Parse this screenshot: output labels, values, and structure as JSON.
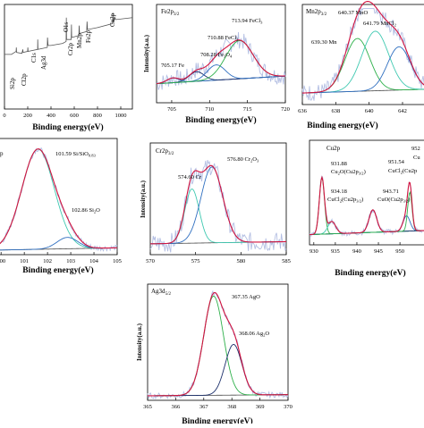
{
  "colors": {
    "data": "#b4bfe3",
    "envelope": "#d3133f",
    "baseline": "#4a4a4a",
    "green": "#2db04a",
    "cyan": "#3fc9b1",
    "blue": "#2f6fc0",
    "navy": "#1c2f6b",
    "survey": "#555555"
  },
  "chart_data": [
    {
      "id": "survey",
      "type": "line",
      "xlabel": "Binding energy(eV)",
      "ylabel": "",
      "xlim": [
        0,
        1100
      ],
      "ylim": [
        0,
        1
      ],
      "xticks": [
        0,
        200,
        400,
        600,
        800,
        1000
      ],
      "series": [
        {
          "values": [
            [
              0,
              0.55
            ],
            [
              60,
              0.55
            ],
            [
              100,
              0.58
            ],
            [
              102,
              0.62
            ],
            [
              104,
              0.57
            ],
            [
              150,
              0.56
            ],
            [
              158,
              0.6
            ],
            [
              160,
              0.57
            ],
            [
              199,
              0.58
            ],
            [
              201,
              0.62
            ],
            [
              203,
              0.58
            ],
            [
              285,
              0.6
            ],
            [
              286,
              0.7
            ],
            [
              288,
              0.6
            ],
            [
              368,
              0.62
            ],
            [
              370,
              0.72
            ],
            [
              375,
              0.64
            ],
            [
              400,
              0.64
            ],
            [
              500,
              0.66
            ],
            [
              530,
              0.68
            ],
            [
              532,
              0.92
            ],
            [
              534,
              0.7
            ],
            [
              574,
              0.7
            ],
            [
              576,
              0.85
            ],
            [
              578,
              0.72
            ],
            [
              640,
              0.74
            ],
            [
              642,
              0.84
            ],
            [
              646,
              0.76
            ],
            [
              707,
              0.78
            ],
            [
              710,
              0.88
            ],
            [
              714,
              0.8
            ],
            [
              800,
              0.82
            ],
            [
              930,
              0.86
            ],
            [
              932,
              0.97
            ],
            [
              934,
              0.88
            ],
            [
              952,
              0.92
            ],
            [
              954,
              0.9
            ],
            [
              1100,
              0.92
            ]
          ]
        }
      ],
      "annotations": [
        {
          "text": "Si2p",
          "x": 102
        },
        {
          "text": "Cl2p",
          "x": 199
        },
        {
          "text": "C1s",
          "x": 285
        },
        {
          "text": "Ag3d",
          "x": 368
        },
        {
          "text": "O1s",
          "x": 532
        },
        {
          "text": "Cr2p",
          "x": 576
        },
        {
          "text": "Mn2p",
          "x": 642
        },
        {
          "text": "Fe2p",
          "x": 711
        },
        {
          "text": "Cu2p",
          "x": 932
        }
      ]
    },
    {
      "id": "fe",
      "type": "line",
      "panel_label": "Fe2p3/2",
      "xlabel": "Binding energy(eV)",
      "ylabel": "Intensity(a.u.)",
      "xlim": [
        703,
        720
      ],
      "ylim": [
        0,
        1
      ],
      "xticks": [
        705,
        710,
        715,
        720
      ],
      "peaks": [
        {
          "label": "705.17 Fe",
          "center": 705.17,
          "height": 0.05,
          "width": 0.8,
          "color": "blue"
        },
        {
          "label": "708.28 Fe3O4",
          "center": 708.28,
          "height": 0.1,
          "width": 1.0,
          "color": "navy"
        },
        {
          "label": "710.88 FeCl2",
          "center": 710.88,
          "height": 0.16,
          "width": 1.2,
          "color": "blue"
        },
        {
          "label": "713.94 FeCl3",
          "center": 713.94,
          "height": 0.4,
          "width": 1.8,
          "color": "green"
        }
      ],
      "baseline": [
        0.2,
        0.28
      ]
    },
    {
      "id": "mn",
      "type": "line",
      "panel_label": "Mn2p3/2",
      "xlabel": "Binding energy(eV)",
      "ylabel": "",
      "xlim": [
        636,
        643.5
      ],
      "ylim": [
        0,
        1
      ],
      "xticks": [
        636,
        638,
        640,
        642
      ],
      "peaks": [
        {
          "label": "639.30 Mn",
          "center": 639.3,
          "height": 0.55,
          "width": 0.75,
          "color": "green"
        },
        {
          "label": "640.37 MnO",
          "center": 640.37,
          "height": 0.62,
          "width": 0.8,
          "color": "cyan"
        },
        {
          "label": "641.79 MnCl2",
          "center": 641.79,
          "height": 0.45,
          "width": 0.7,
          "color": "blue"
        }
      ],
      "baseline": [
        0.12,
        0.16
      ]
    },
    {
      "id": "si",
      "type": "line",
      "panel_label": "Si2p",
      "xlabel": "Binding energy(eV)",
      "ylabel": "",
      "xlim": [
        99.8,
        105
      ],
      "ylim": [
        0,
        1
      ],
      "xticks": [
        100,
        101,
        102,
        103,
        104,
        105
      ],
      "peaks": [
        {
          "label": "101.59 Si/SiO0.83",
          "center": 101.59,
          "height": 0.88,
          "width": 0.7,
          "color": "cyan"
        },
        {
          "label": "102.86 Si2O",
          "center": 102.86,
          "height": 0.1,
          "width": 0.45,
          "color": "blue"
        }
      ],
      "baseline": [
        0.04,
        0.06
      ]
    },
    {
      "id": "cr",
      "type": "line",
      "panel_label": "Cr2p3/2",
      "xlabel": "",
      "ylabel": "Intensity(a.u.)",
      "xlim": [
        570,
        585
      ],
      "ylim": [
        0,
        1
      ],
      "xticks": [
        570,
        575,
        580,
        585
      ],
      "peaks": [
        {
          "label": "574.60 Cr",
          "center": 574.6,
          "height": 0.5,
          "width": 0.8,
          "color": "cyan"
        },
        {
          "label": "576.80 Cr2O3",
          "center": 576.8,
          "height": 0.7,
          "width": 1.2,
          "color": "blue"
        }
      ],
      "baseline": [
        0.1,
        0.12
      ]
    },
    {
      "id": "cu",
      "type": "line",
      "panel_label": "Cu2p",
      "xlabel": "Binding energy(eV)",
      "ylabel": "",
      "xlim": [
        929,
        956
      ],
      "ylim": [
        0,
        1
      ],
      "xticks": [
        930,
        935,
        940,
        945,
        950
      ],
      "peaks": [
        {
          "label": "931.88 Cu2O(Cu2p3/2)",
          "center": 931.88,
          "height": 0.55,
          "width": 0.6,
          "color": "green"
        },
        {
          "label": "934.18 CuCl2(Cu2p3/2)",
          "center": 934.18,
          "height": 0.12,
          "width": 0.9,
          "color": "cyan"
        },
        {
          "label": "943.71 CuO(Cu2p3/2)",
          "center": 943.71,
          "height": 0.22,
          "width": 0.9,
          "color": "navy"
        },
        {
          "label": "951.54 CuCl2(Cu2p1/2)",
          "center": 951.54,
          "height": 0.15,
          "width": 0.8,
          "color": "blue"
        },
        {
          "label": "952",
          "center": 952.3,
          "height": 0.38,
          "width": 0.5,
          "color": "green"
        }
      ],
      "baseline": [
        0.1,
        0.14
      ]
    },
    {
      "id": "ag",
      "type": "line",
      "panel_label": "Ag3d5/2",
      "xlabel": "Binding energy(eV)",
      "ylabel": "Intensity(a.u.)",
      "xlim": [
        365,
        370
      ],
      "ylim": [
        0,
        1
      ],
      "xticks": [
        365,
        366,
        367,
        368,
        369,
        370
      ],
      "peaks": [
        {
          "label": "367.35 AgO",
          "center": 367.35,
          "height": 0.88,
          "width": 0.35,
          "color": "green"
        },
        {
          "label": "368.06 Ag2O",
          "center": 368.06,
          "height": 0.45,
          "width": 0.3,
          "color": "navy"
        }
      ],
      "baseline": [
        0.04,
        0.05
      ]
    }
  ],
  "labels": {
    "survey_xlabel": "Binding energy(eV)",
    "survey_annotations": {
      "si": "Si2p",
      "cl": "Cl2p",
      "c": "C1s",
      "ag": "Ag3d",
      "o": "O1s",
      "cr": "Cr2p",
      "mn": "Mn2p",
      "fe": "Fe2p",
      "cu": "Cu2p"
    },
    "fe": {
      "panel": "Fe2p",
      "sub": "3/2",
      "xlabel": "Binding energy(eV)",
      "ylabel": "Intensity(a.u.)",
      "p1": "705.17 Fe",
      "p2a": "708.28 Fe",
      "p2b": "3",
      "p2c": "O",
      "p2d": "4",
      "p3a": "710.88 FeCl",
      "p3b": "2",
      "p4a": "713.94 FeCl",
      "p4b": "3"
    },
    "mn": {
      "panel": "Mn2p",
      "sub": "3/2",
      "xlabel": "Binding energy(eV)",
      "p1": "639.30 Mn",
      "p2": "640.37 MnO",
      "p3a": "641.79 MnCl",
      "p3b": "2"
    },
    "si": {
      "panel": "p",
      "xlabel": "Binding energy(eV)",
      "p1a": "101.59 Si/SiO",
      "p1b": "0.83",
      "p2a": "102.86 Si",
      "p2b": "2",
      "p2c": "O"
    },
    "cr": {
      "panel": "Cr2p",
      "sub": "3/2",
      "ylabel": "Intensity(a.u.)",
      "p1": "574.60 Cr",
      "p2a": "576.80 Cr",
      "p2b": "2",
      "p2c": "O",
      "p2d": "3"
    },
    "cu": {
      "panel": "Cu2p",
      "xlabel": "Binding energy(eV)",
      "p1": "931.88",
      "p1b": "Cu",
      "p1c": "2",
      "p1d": "O(Cu2p",
      "p1e": "3/2",
      "p1f": ")",
      "p2": "934.18",
      "p2b": "CuCl",
      "p2c": "2",
      "p2d": "(Cu2p",
      "p2e": "3/2",
      "p2f": ")",
      "p3": "943.71",
      "p3b": "CuO(Cu2p",
      "p3c": "3/2",
      "p3d": ")",
      "p4": "951.54",
      "p4b": "CuCl",
      "p4c": "2",
      "p4d": "(Cu2p",
      "p5": "952",
      "p6": "Cu"
    },
    "ag": {
      "panel": "Ag3d",
      "sub": "5/2",
      "xlabel": "Binding energy(eV)",
      "ylabel": "Intensity(a.u.)",
      "p1": "367.35 AgO",
      "p2a": "368.06 Ag",
      "p2b": "2",
      "p2c": "O"
    }
  }
}
